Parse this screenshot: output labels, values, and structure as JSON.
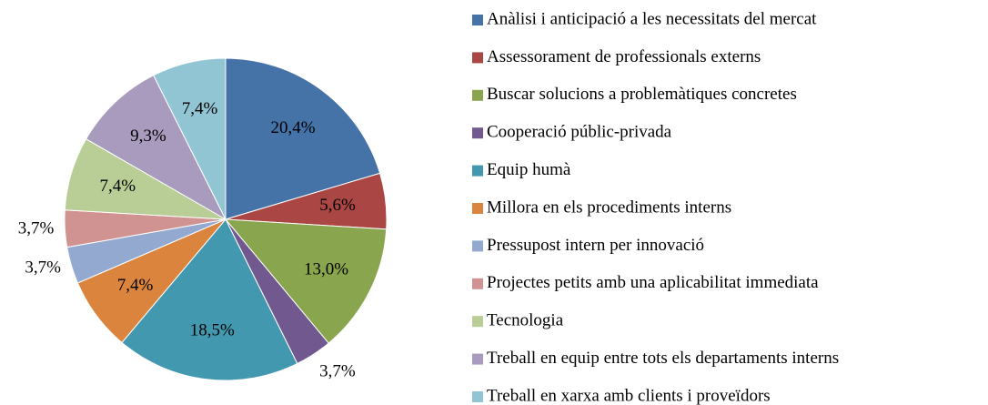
{
  "chart_data": {
    "type": "pie",
    "categories": [
      "Anàlisi i anticipació a les necessitats del mercat",
      "Assessorament de professionals externs",
      "Buscar solucions a problemàtiques concretes",
      "Cooperació públic-privada",
      "Equip humà",
      "Millora en els procediments interns",
      "Pressupost intern per innovació",
      "Projectes petits amb una aplicabilitat immediata",
      "Tecnologia",
      "Treball en equip entre tots els departaments interns",
      "Treball en xarxa amb clients i proveïdors"
    ],
    "values": [
      20.4,
      5.6,
      13.0,
      3.7,
      18.5,
      7.4,
      3.7,
      3.7,
      7.4,
      9.3,
      7.4
    ],
    "value_labels": [
      "20,4%",
      "5,6%",
      "13,0%",
      "3,7%",
      "18,5%",
      "7,4%",
      "3,7%",
      "3,7%",
      "7,4%",
      "9,3%",
      "7,4%"
    ],
    "colors": [
      "#4572A7",
      "#AA4643",
      "#89A54E",
      "#71588F",
      "#4198AF",
      "#DB843D",
      "#93A9CF",
      "#D19392",
      "#B9CD96",
      "#A99BBD",
      "#92C5D3"
    ],
    "legend": "right"
  }
}
